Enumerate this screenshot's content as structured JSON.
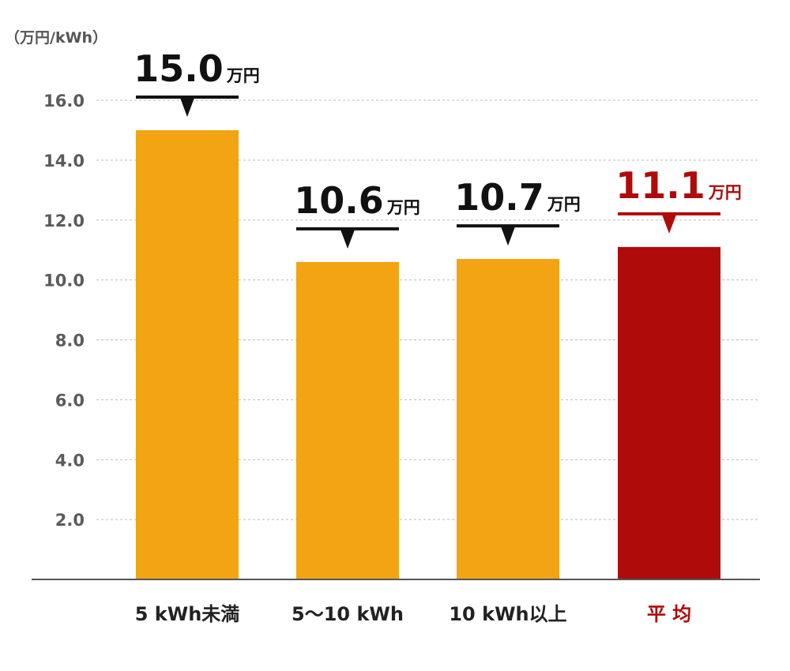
{
  "chart_data": {
    "type": "bar",
    "unit_label": "（万円/kWh）",
    "ylim": [
      0,
      16
    ],
    "yticks": [
      "2.0",
      "4.0",
      "6.0",
      "8.0",
      "10.0",
      "12.0",
      "14.0",
      "16.0"
    ],
    "grid": true,
    "categories": [
      "5 kWh未満",
      "5～10 kWh",
      "10 kWh以上",
      "平 均"
    ],
    "values": [
      15.0,
      10.6,
      10.7,
      11.1
    ],
    "value_labels": [
      "15.0",
      "10.6",
      "10.7",
      "11.1"
    ],
    "value_unit": "万円",
    "highlight_index": 3
  },
  "colors": {
    "bar": "#f2a413",
    "highlight": "#b00b0b",
    "label": "#111111",
    "axis": "#555555",
    "grid": "#bbbbbb"
  }
}
